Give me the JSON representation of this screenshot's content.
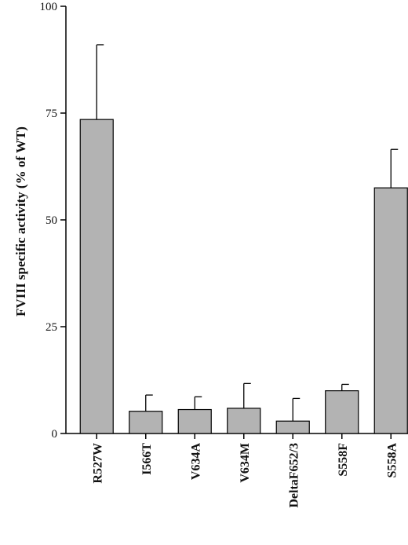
{
  "chart_data": {
    "type": "bar",
    "title": "",
    "xlabel": "",
    "ylabel": "FVIII specific activity (% of WT)",
    "categories": [
      "R527W",
      "I566T",
      "V634A",
      "V634M",
      "DeltaF652/3",
      "S558F",
      "S558A"
    ],
    "values": [
      73.5,
      5.2,
      5.6,
      5.9,
      2.9,
      10.0,
      57.5
    ],
    "errors": [
      17.5,
      3.8,
      3.0,
      5.8,
      5.3,
      1.5,
      9.0
    ],
    "ylim": [
      0,
      100
    ],
    "yticks": [
      "0",
      "25",
      "50",
      "75",
      "100"
    ],
    "ytick_values": [
      0,
      25,
      50,
      75,
      100
    ],
    "grid": false,
    "bar_color": "#b3b3b3"
  }
}
